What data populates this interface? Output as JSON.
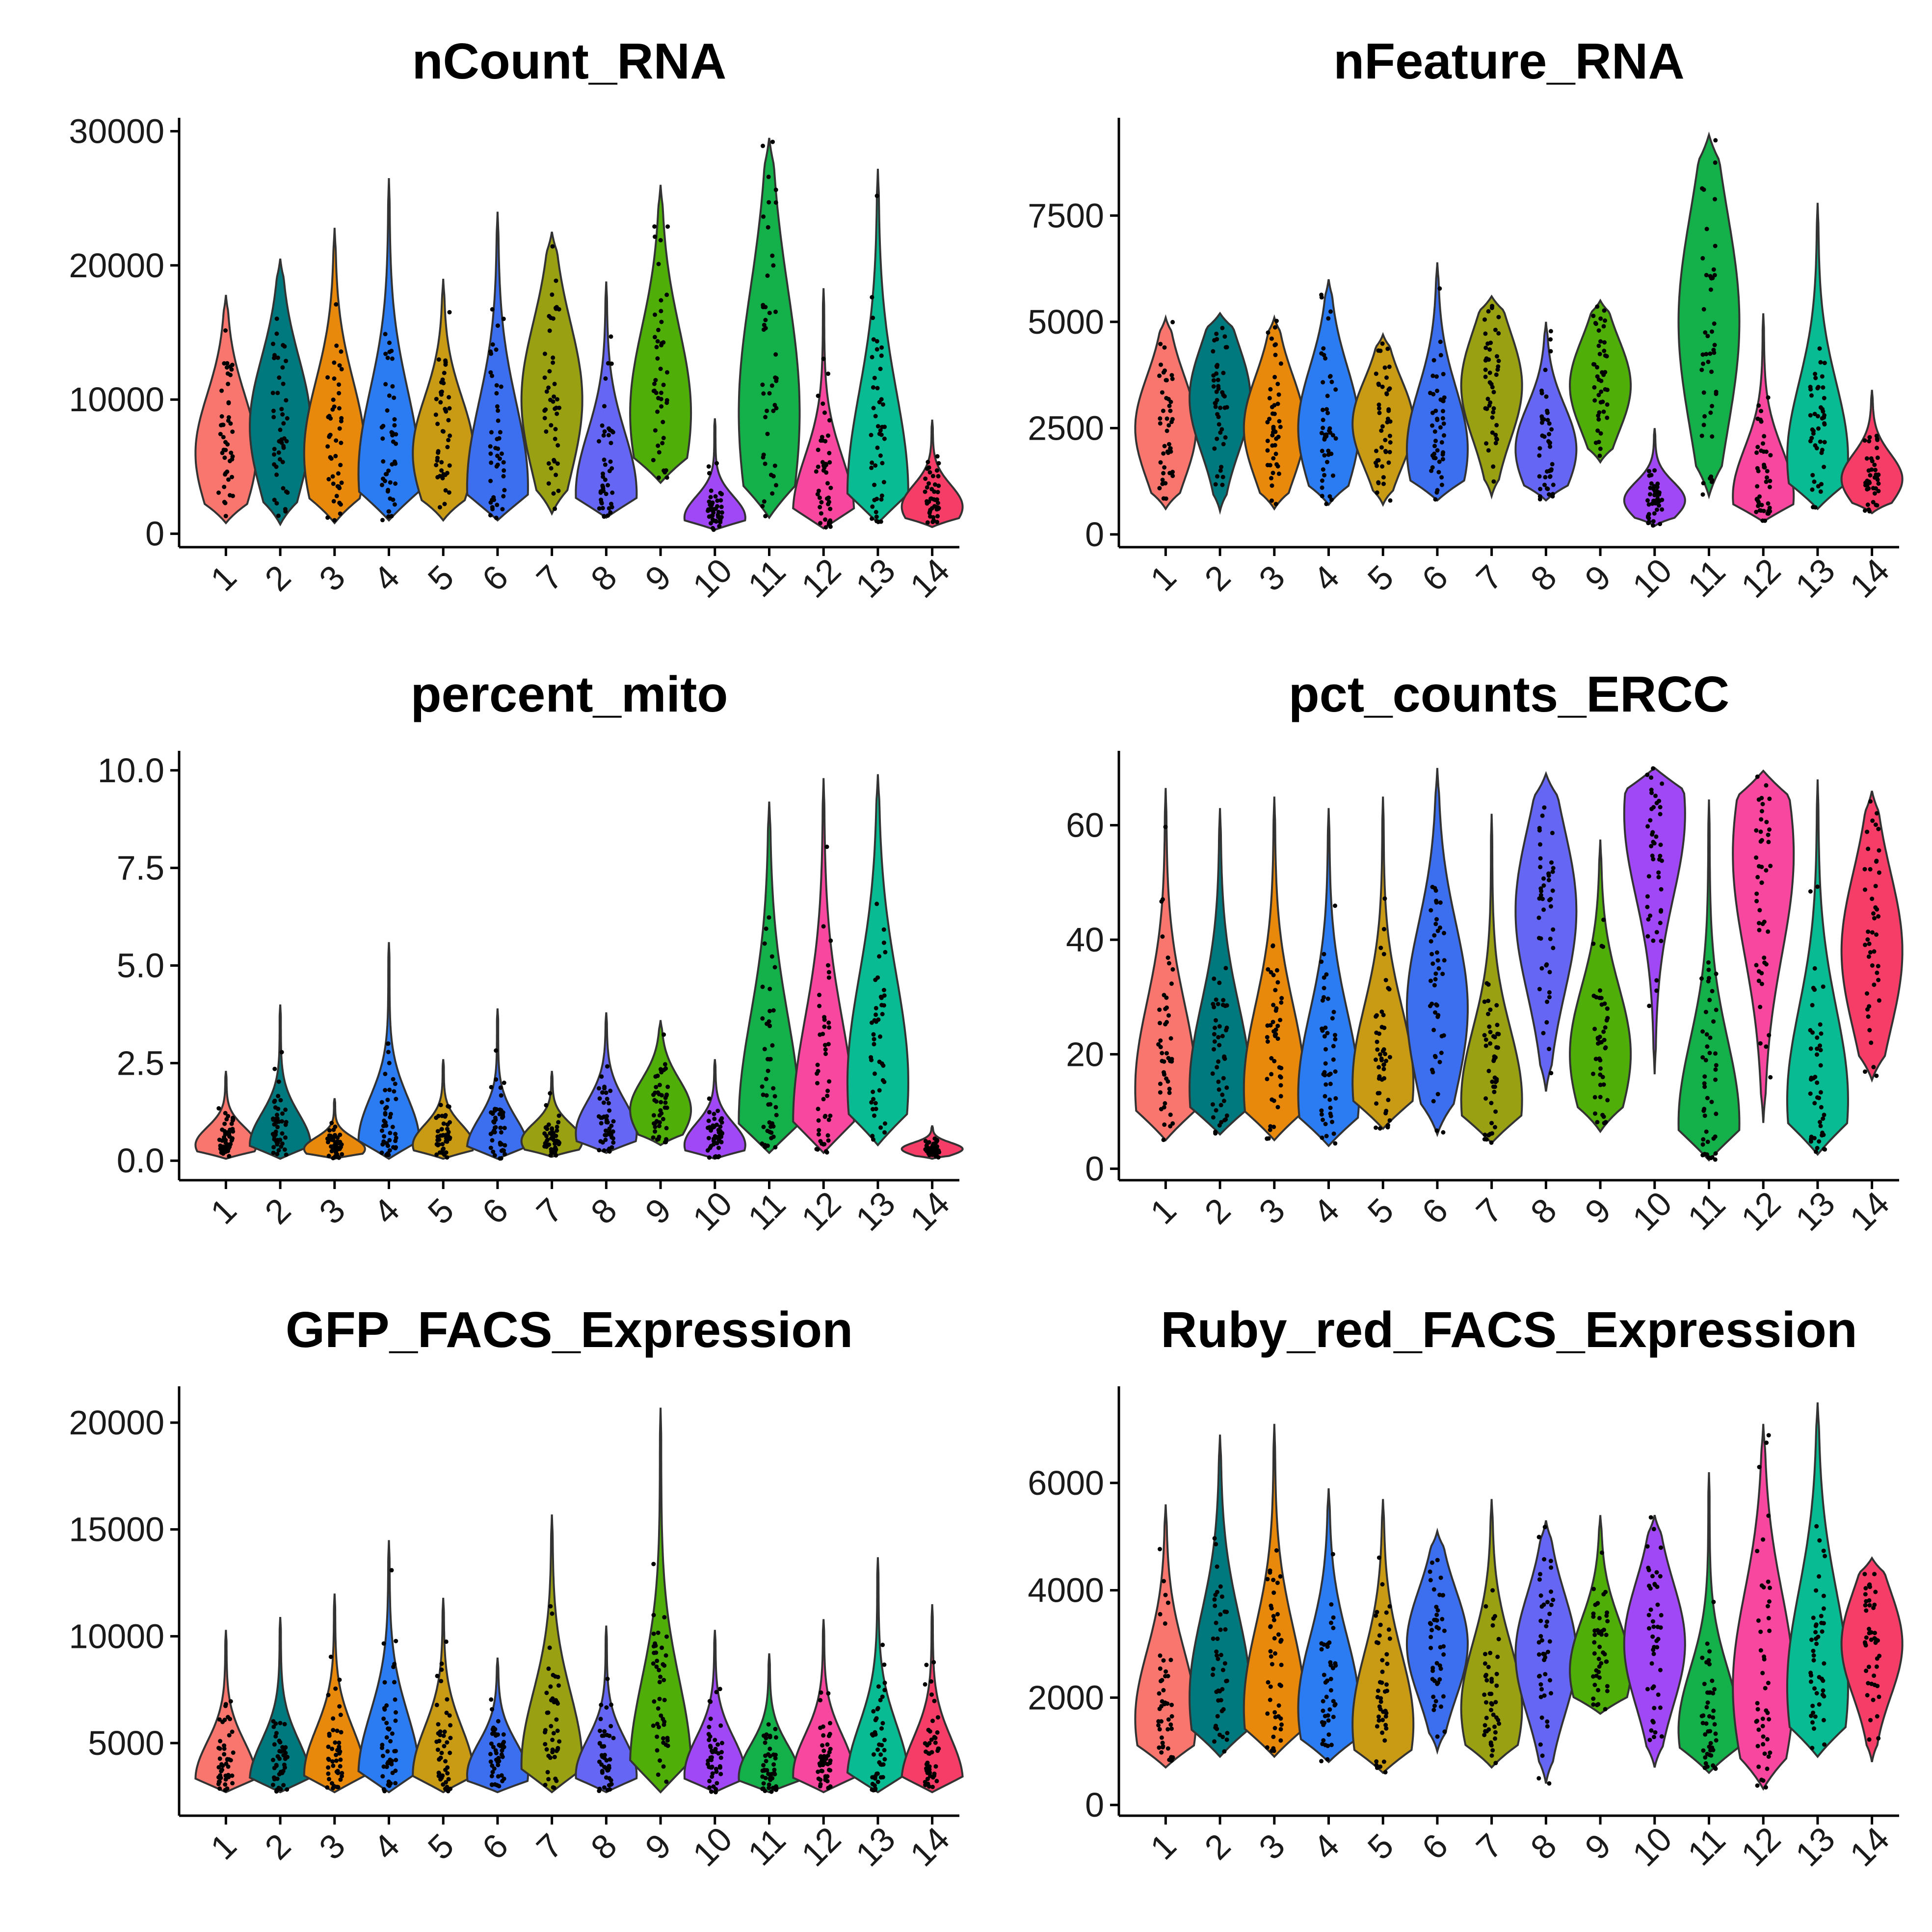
{
  "chart_data": [
    {
      "type": "violin",
      "title": "nCount_RNA",
      "xlabel": "",
      "ylabel": "",
      "categories": [
        "1",
        "2",
        "3",
        "4",
        "5",
        "6",
        "7",
        "8",
        "9",
        "10",
        "11",
        "12",
        "13",
        "14"
      ],
      "yticks": [
        0,
        10000,
        20000,
        30000
      ],
      "ytick_labels": [
        "0",
        "10000",
        "20000",
        "30000"
      ],
      "ylim": [
        -1000,
        31000
      ],
      "series": [
        {
          "group": "1",
          "min": 800,
          "max": 17800,
          "median": 6500,
          "mode": 6000,
          "skew": 0.65
        },
        {
          "group": "2",
          "min": 700,
          "max": 20500,
          "median": 7500,
          "mode": 8000,
          "skew": 0.65
        },
        {
          "group": "3",
          "min": 800,
          "max": 22800,
          "median": 7000,
          "mode": 6000,
          "skew": 0.6
        },
        {
          "group": "4",
          "min": 1000,
          "max": 26500,
          "median": 6500,
          "mode": 4500,
          "skew": 0.6
        },
        {
          "group": "5",
          "min": 1000,
          "max": 19000,
          "median": 6500,
          "mode": 6000,
          "skew": 0.55
        },
        {
          "group": "6",
          "min": 1000,
          "max": 24000,
          "median": 4000,
          "mode": 3500,
          "skew": 0.7
        },
        {
          "group": "7",
          "min": 1500,
          "max": 22500,
          "median": 10000,
          "mode": 10000,
          "skew": 0.7
        },
        {
          "group": "8",
          "min": 1200,
          "max": 18800,
          "median": 5000,
          "mode": 3000,
          "skew": 0.65
        },
        {
          "group": "9",
          "min": 3800,
          "max": 26000,
          "median": 11000,
          "mode": 9000,
          "skew": 0.75
        },
        {
          "group": "10",
          "min": 300,
          "max": 8600,
          "median": 1800,
          "mode": 1200,
          "skew": 0.4
        },
        {
          "group": "11",
          "min": 1200,
          "max": 29500,
          "median": 13000,
          "mode": 9000,
          "skew": 0.9
        },
        {
          "group": "12",
          "min": 400,
          "max": 18300,
          "median": 2000,
          "mode": 1600,
          "skew": 0.55
        },
        {
          "group": "13",
          "min": 800,
          "max": 27200,
          "median": 7000,
          "mode": 3000,
          "skew": 0.75
        },
        {
          "group": "14",
          "min": 500,
          "max": 8500,
          "median": 2500,
          "mode": 2000,
          "skew": 0.45
        }
      ]
    },
    {
      "type": "violin",
      "title": "nFeature_RNA",
      "xlabel": "",
      "ylabel": "",
      "categories": [
        "1",
        "2",
        "3",
        "4",
        "5",
        "6",
        "7",
        "8",
        "9",
        "10",
        "11",
        "12",
        "13",
        "14"
      ],
      "yticks": [
        0,
        2500,
        5000,
        7500
      ],
      "ytick_labels": [
        "0",
        "2500",
        "5000",
        "7500"
      ],
      "ylim": [
        -300,
        9800
      ],
      "series": [
        {
          "group": "1",
          "min": 600,
          "max": 5100,
          "median": 2500,
          "mode": 2500,
          "skew": 0.7
        },
        {
          "group": "2",
          "min": 550,
          "max": 5200,
          "median": 2800,
          "mode": 3200,
          "skew": 0.7
        },
        {
          "group": "3",
          "min": 600,
          "max": 5100,
          "median": 2500,
          "mode": 2500,
          "skew": 0.7
        },
        {
          "group": "4",
          "min": 700,
          "max": 6000,
          "median": 2600,
          "mode": 2500,
          "skew": 0.7
        },
        {
          "group": "5",
          "min": 700,
          "max": 4700,
          "median": 2400,
          "mode": 2600,
          "skew": 0.65
        },
        {
          "group": "6",
          "min": 800,
          "max": 6400,
          "median": 2200,
          "mode": 2000,
          "skew": 0.65
        },
        {
          "group": "7",
          "min": 900,
          "max": 5600,
          "median": 3200,
          "mode": 3500,
          "skew": 0.7
        },
        {
          "group": "8",
          "min": 800,
          "max": 5000,
          "median": 2200,
          "mode": 2000,
          "skew": 0.6
        },
        {
          "group": "9",
          "min": 1700,
          "max": 5500,
          "median": 3600,
          "mode": 3500,
          "skew": 0.75
        },
        {
          "group": "10",
          "min": 200,
          "max": 2500,
          "median": 800,
          "mode": 800,
          "skew": 0.4
        },
        {
          "group": "11",
          "min": 900,
          "max": 9400,
          "median": 4800,
          "mode": 5000,
          "skew": 0.8
        },
        {
          "group": "12",
          "min": 300,
          "max": 5200,
          "median": 1200,
          "mode": 900,
          "skew": 0.55
        },
        {
          "group": "13",
          "min": 600,
          "max": 7800,
          "median": 2500,
          "mode": 1800,
          "skew": 0.6
        },
        {
          "group": "14",
          "min": 500,
          "max": 3400,
          "median": 1300,
          "mode": 1300,
          "skew": 0.45
        }
      ]
    },
    {
      "type": "violin",
      "title": "percent_mito",
      "xlabel": "",
      "ylabel": "",
      "categories": [
        "1",
        "2",
        "3",
        "4",
        "5",
        "6",
        "7",
        "8",
        "9",
        "10",
        "11",
        "12",
        "13",
        "14"
      ],
      "yticks": [
        0.0,
        2.5,
        5.0,
        7.5,
        10.0
      ],
      "ytick_labels": [
        "0.0",
        "2.5",
        "5.0",
        "7.5",
        "10.0"
      ],
      "ylim": [
        -0.5,
        10.5
      ],
      "series": [
        {
          "group": "1",
          "min": 0.05,
          "max": 2.3,
          "median": 0.4,
          "mode": 0.4,
          "skew": 0.45
        },
        {
          "group": "2",
          "min": 0.05,
          "max": 4.0,
          "median": 0.4,
          "mode": 0.4,
          "skew": 0.45
        },
        {
          "group": "3",
          "min": 0.05,
          "max": 1.6,
          "median": 0.4,
          "mode": 0.3,
          "skew": 0.4
        },
        {
          "group": "4",
          "min": 0.05,
          "max": 5.6,
          "median": 0.5,
          "mode": 0.5,
          "skew": 0.45
        },
        {
          "group": "5",
          "min": 0.05,
          "max": 2.6,
          "median": 0.5,
          "mode": 0.4,
          "skew": 0.45
        },
        {
          "group": "6",
          "min": 0.05,
          "max": 3.9,
          "median": 0.4,
          "mode": 0.3,
          "skew": 0.45
        },
        {
          "group": "7",
          "min": 0.1,
          "max": 2.3,
          "median": 0.5,
          "mode": 0.5,
          "skew": 0.45
        },
        {
          "group": "8",
          "min": 0.2,
          "max": 3.8,
          "median": 1.0,
          "mode": 0.7,
          "skew": 0.55
        },
        {
          "group": "9",
          "min": 0.4,
          "max": 3.6,
          "median": 1.5,
          "mode": 1.3,
          "skew": 0.6
        },
        {
          "group": "10",
          "min": 0.05,
          "max": 2.6,
          "median": 0.5,
          "mode": 0.4,
          "skew": 0.5
        },
        {
          "group": "11",
          "min": 0.2,
          "max": 9.2,
          "median": 1.5,
          "mode": 1.0,
          "skew": 0.8
        },
        {
          "group": "12",
          "min": 0.2,
          "max": 9.8,
          "median": 1.2,
          "mode": 1.0,
          "skew": 0.7
        },
        {
          "group": "13",
          "min": 0.4,
          "max": 9.9,
          "median": 2.8,
          "mode": 2.0,
          "skew": 0.75
        },
        {
          "group": "14",
          "min": 0.05,
          "max": 0.9,
          "median": 0.3,
          "mode": 0.3,
          "skew": 0.4
        }
      ]
    },
    {
      "type": "violin",
      "title": "pct_counts_ERCC",
      "xlabel": "",
      "ylabel": "",
      "categories": [
        "1",
        "2",
        "3",
        "4",
        "5",
        "6",
        "7",
        "8",
        "9",
        "10",
        "11",
        "12",
        "13",
        "14"
      ],
      "yticks": [
        0,
        20,
        40,
        60
      ],
      "ytick_labels": [
        "0",
        "20",
        "40",
        "60"
      ],
      "ylim": [
        -2,
        73
      ],
      "series": [
        {
          "group": "1",
          "min": 5,
          "max": 66.5,
          "median": 17,
          "mode": 14,
          "skew": 0.6
        },
        {
          "group": "2",
          "min": 6,
          "max": 63,
          "median": 17,
          "mode": 14,
          "skew": 0.65
        },
        {
          "group": "3",
          "min": 5,
          "max": 65,
          "median": 17,
          "mode": 14,
          "skew": 0.6
        },
        {
          "group": "4",
          "min": 4,
          "max": 63,
          "median": 17,
          "mode": 13,
          "skew": 0.6
        },
        {
          "group": "5",
          "min": 7,
          "max": 65,
          "median": 17,
          "mode": 15,
          "skew": 0.55
        },
        {
          "group": "6",
          "min": 6,
          "max": 70,
          "median": 32,
          "mode": 28,
          "skew": 0.55
        },
        {
          "group": "7",
          "min": 4.5,
          "max": 62,
          "median": 13,
          "mode": 12,
          "skew": 0.5
        },
        {
          "group": "8",
          "min": 13.5,
          "max": 69,
          "median": 42,
          "mode": 45,
          "skew": 0.65
        },
        {
          "group": "9",
          "min": 6.5,
          "max": 57.5,
          "median": 25,
          "mode": 20,
          "skew": 0.55
        },
        {
          "group": "10",
          "min": 16.5,
          "max": 70,
          "median": 55,
          "mode": 62,
          "skew": 0.7
        },
        {
          "group": "11",
          "min": 1.5,
          "max": 64.5,
          "median": 10,
          "mode": 8,
          "skew": 0.55
        },
        {
          "group": "12",
          "min": 8,
          "max": 69.5,
          "median": 45,
          "mode": 55,
          "skew": 0.75
        },
        {
          "group": "13",
          "min": 2.5,
          "max": 68,
          "median": 20,
          "mode": 12,
          "skew": 0.6
        },
        {
          "group": "14",
          "min": 15.5,
          "max": 66,
          "median": 40,
          "mode": 38,
          "skew": 0.7
        }
      ]
    },
    {
      "type": "violin",
      "title": "GFP_FACS_Expression",
      "xlabel": "",
      "ylabel": "",
      "categories": [
        "1",
        "2",
        "3",
        "4",
        "5",
        "6",
        "7",
        "8",
        "9",
        "10",
        "11",
        "12",
        "13",
        "14"
      ],
      "yticks": [
        5000,
        10000,
        15000,
        20000
      ],
      "ytick_labels": [
        "5000",
        "10000",
        "15000",
        "20000"
      ],
      "ylim": [
        1600,
        21700
      ],
      "series": [
        {
          "group": "1",
          "min": 2700,
          "max": 10300,
          "median": 4000,
          "mode": 3300,
          "skew": 0.55
        },
        {
          "group": "2",
          "min": 2700,
          "max": 10900,
          "median": 3800,
          "mode": 3200,
          "skew": 0.55
        },
        {
          "group": "3",
          "min": 2700,
          "max": 12000,
          "median": 4100,
          "mode": 3500,
          "skew": 0.55
        },
        {
          "group": "4",
          "min": 2700,
          "max": 14500,
          "median": 4200,
          "mode": 3500,
          "skew": 0.6
        },
        {
          "group": "5",
          "min": 2700,
          "max": 11800,
          "median": 4200,
          "mode": 3500,
          "skew": 0.6
        },
        {
          "group": "6",
          "min": 2700,
          "max": 9000,
          "median": 4000,
          "mode": 3500,
          "skew": 0.6
        },
        {
          "group": "7",
          "min": 2700,
          "max": 15700,
          "median": 4800,
          "mode": 4000,
          "skew": 0.65
        },
        {
          "group": "8",
          "min": 2700,
          "max": 10500,
          "median": 3700,
          "mode": 3500,
          "skew": 0.5
        },
        {
          "group": "9",
          "min": 2700,
          "max": 20700,
          "median": 5000,
          "mode": 3800,
          "skew": 0.55
        },
        {
          "group": "10",
          "min": 2700,
          "max": 10300,
          "median": 4000,
          "mode": 3500,
          "skew": 0.55
        },
        {
          "group": "11",
          "min": 2700,
          "max": 9200,
          "median": 3800,
          "mode": 3400,
          "skew": 0.55
        },
        {
          "group": "12",
          "min": 2700,
          "max": 10800,
          "median": 4000,
          "mode": 3500,
          "skew": 0.55
        },
        {
          "group": "13",
          "min": 2700,
          "max": 13700,
          "median": 3700,
          "mode": 3300,
          "skew": 0.55
        },
        {
          "group": "14",
          "min": 2700,
          "max": 11500,
          "median": 3600,
          "mode": 3200,
          "skew": 0.55
        }
      ]
    },
    {
      "type": "violin",
      "title": "Ruby_red_FACS_Expression",
      "xlabel": "",
      "ylabel": "",
      "categories": [
        "1",
        "2",
        "3",
        "4",
        "5",
        "6",
        "7",
        "8",
        "9",
        "10",
        "11",
        "12",
        "13",
        "14"
      ],
      "yticks": [
        0,
        2000,
        4000,
        6000
      ],
      "ytick_labels": [
        "0",
        "2000",
        "4000",
        "6000"
      ],
      "ylim": [
        -200,
        7800
      ],
      "series": [
        {
          "group": "1",
          "min": 700,
          "max": 5600,
          "median": 2000,
          "mode": 1600,
          "skew": 0.65
        },
        {
          "group": "2",
          "min": 900,
          "max": 6900,
          "median": 2500,
          "mode": 2000,
          "skew": 0.65
        },
        {
          "group": "3",
          "min": 900,
          "max": 7100,
          "median": 2300,
          "mode": 1800,
          "skew": 0.6
        },
        {
          "group": "4",
          "min": 800,
          "max": 5900,
          "median": 2300,
          "mode": 1800,
          "skew": 0.65
        },
        {
          "group": "5",
          "min": 600,
          "max": 5700,
          "median": 2000,
          "mode": 1500,
          "skew": 0.65
        },
        {
          "group": "6",
          "min": 1000,
          "max": 5100,
          "median": 2800,
          "mode": 3000,
          "skew": 0.6
        },
        {
          "group": "7",
          "min": 700,
          "max": 5700,
          "median": 2400,
          "mode": 1800,
          "skew": 0.6
        },
        {
          "group": "8",
          "min": 400,
          "max": 5300,
          "median": 2700,
          "mode": 2800,
          "skew": 0.55
        },
        {
          "group": "9",
          "min": 1700,
          "max": 5400,
          "median": 2900,
          "mode": 2500,
          "skew": 0.65
        },
        {
          "group": "10",
          "min": 700,
          "max": 5400,
          "median": 2800,
          "mode": 3000,
          "skew": 0.6
        },
        {
          "group": "11",
          "min": 600,
          "max": 6200,
          "median": 1500,
          "mode": 1400,
          "skew": 0.45
        },
        {
          "group": "12",
          "min": 300,
          "max": 7100,
          "median": 2700,
          "mode": 2200,
          "skew": 0.65
        },
        {
          "group": "13",
          "min": 900,
          "max": 7500,
          "median": 3000,
          "mode": 2200,
          "skew": 0.7
        },
        {
          "group": "14",
          "min": 800,
          "max": 4600,
          "median": 2900,
          "mode": 3000,
          "skew": 0.65
        }
      ]
    }
  ],
  "colors": {
    "groups": [
      "#F8766D",
      "#DB8E00",
      "#AEA200",
      "#64B200",
      "#00BD5C",
      "#00C1A7",
      "#00BADE",
      "#00A6FF",
      "#B385FF",
      "#EF67EB",
      "#FF63B6",
      "#E68613",
      "#00A9FF",
      "#FF61C3"
    ],
    "group_fill": [
      "#F8766D",
      "#00797E",
      "#E8890B",
      "#2B7BF2",
      "#C99A14",
      "#3C6EF0",
      "#99A012",
      "#6666F4",
      "#4FAF08",
      "#A048F6",
      "#14B04A",
      "#F8479E",
      "#09BB92",
      "#F63D67"
    ],
    "outline": "#333333",
    "points": "#000000",
    "axis": "#000000"
  }
}
